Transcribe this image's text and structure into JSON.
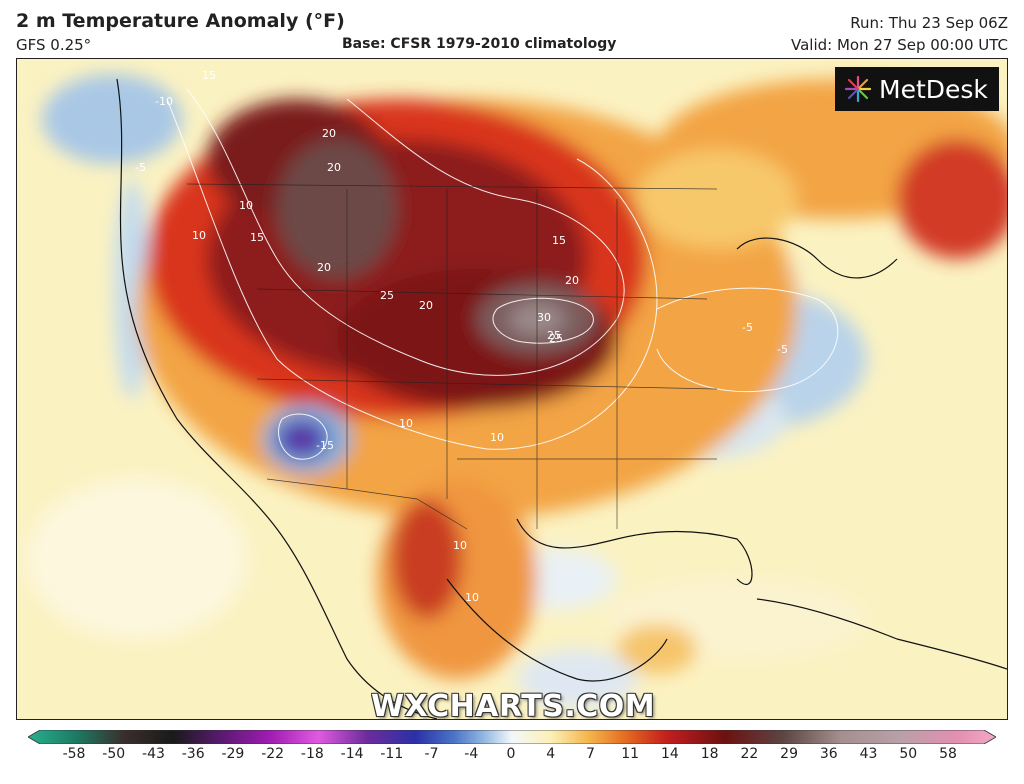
{
  "header": {
    "title": "2 m Temperature Anomaly (°F)",
    "model": "GFS 0.25°",
    "base": "Base: CFSR 1979-2010 climatology",
    "run": "Run: Thu 23 Sep 06Z",
    "valid": "Valid: Mon 27 Sep 00:00 UTC"
  },
  "logo": {
    "text": "MetDesk",
    "icon": "metdesk-starburst-logo"
  },
  "watermark": "WXCHARTS.COM",
  "colorbar": {
    "ticks": [
      "-58",
      "-50",
      "-43",
      "-36",
      "-29",
      "-22",
      "-18",
      "-14",
      "-11",
      "-7",
      "-4",
      "0",
      "4",
      "7",
      "11",
      "14",
      "18",
      "22",
      "29",
      "36",
      "43",
      "50",
      "58"
    ]
  },
  "contour_labels": [
    {
      "text": "-10"
    },
    {
      "text": "-5"
    },
    {
      "text": "15"
    },
    {
      "text": "15"
    },
    {
      "text": "20"
    },
    {
      "text": "20"
    },
    {
      "text": "20"
    },
    {
      "text": "25"
    },
    {
      "text": "25"
    },
    {
      "text": "20"
    },
    {
      "text": "20"
    },
    {
      "text": "30"
    },
    {
      "text": "25"
    },
    {
      "text": "15"
    },
    {
      "text": "10"
    },
    {
      "text": "10"
    },
    {
      "text": "-15"
    },
    {
      "text": "10"
    },
    {
      "text": "-5"
    },
    {
      "text": "-5"
    },
    {
      "text": "10"
    },
    {
      "text": "10"
    },
    {
      "text": "10"
    }
  ]
}
